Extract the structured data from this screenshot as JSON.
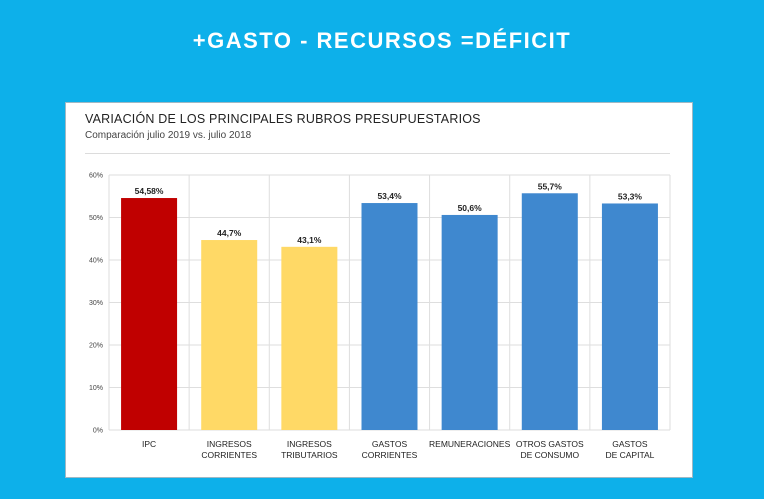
{
  "headline": "+GASTO - RECURSOS =DÉFICIT",
  "chart_data": {
    "type": "bar",
    "title": "VARIACIÓN DE LOS PRINCIPALES RUBROS PRESUPUESTARIOS",
    "subtitle": "Comparación julio 2019 vs. julio 2018",
    "xlabel": "",
    "ylabel": "",
    "ylim": [
      0,
      60
    ],
    "yticks": [
      0,
      10,
      20,
      30,
      40,
      50,
      60
    ],
    "ytick_labels": [
      "0%",
      "10%",
      "20%",
      "30%",
      "40%",
      "50%",
      "60%"
    ],
    "grid": true,
    "categories": [
      [
        "IPC"
      ],
      [
        "INGRESOS",
        "CORRIENTES"
      ],
      [
        "INGRESOS",
        "TRIBUTARIOS"
      ],
      [
        "GASTOS",
        "CORRIENTES"
      ],
      [
        "REMUNERACIONES"
      ],
      [
        "OTROS GASTOS",
        "DE CONSUMO"
      ],
      [
        "GASTOS",
        "DE CAPITAL"
      ]
    ],
    "values": [
      54.58,
      44.7,
      43.1,
      53.4,
      50.6,
      55.7,
      53.3
    ],
    "value_labels": [
      "54,58%",
      "44,7%",
      "43,1%",
      "53,4%",
      "50,6%",
      "55,7%",
      "53,3%"
    ],
    "colors": [
      "#c00000",
      "#ffd966",
      "#ffd966",
      "#3f88cf",
      "#3f88cf",
      "#3f88cf",
      "#3f88cf"
    ]
  }
}
